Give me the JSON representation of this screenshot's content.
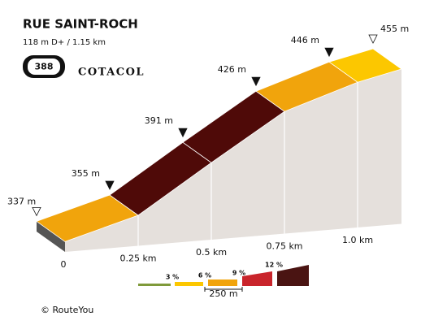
{
  "header": {
    "title": "RUE SAINT-ROCH",
    "subtitle": "118 m D+ / 1.15 km",
    "badge": "388",
    "brand": "COTACOL"
  },
  "chart_data": {
    "type": "profile",
    "x": [
      0,
      0.25,
      0.5,
      0.75,
      1.0,
      1.15
    ],
    "values": [
      337,
      355,
      391,
      426,
      446,
      455
    ],
    "value_labels": [
      "337 m",
      "355 m",
      "391 m",
      "426 m",
      "446 m",
      "455 m"
    ],
    "segment_colors": [
      "#f1a40c",
      "#4f0a08",
      "#4f0a08",
      "#f1a40c",
      "#fcc700"
    ],
    "xlim": [
      0,
      1.15
    ],
    "xticks": [
      0,
      {
        "value": 0.25,
        "label": "0.25 km"
      },
      {
        "value": 0.5,
        "label": "0.5 km"
      },
      {
        "value": 0.75,
        "label": "0.75 km"
      },
      {
        "value": 1.0,
        "label": "1.0 km"
      }
    ]
  },
  "legend": {
    "colors": [
      "#7f9a3a",
      "#fcc700",
      "#f1a40c",
      "#c9242b",
      "#4a1412"
    ],
    "labels": [
      "3 %",
      "6 %",
      "9 %",
      "12 %"
    ],
    "scale": "250 m"
  },
  "footer": "© RouteYou"
}
